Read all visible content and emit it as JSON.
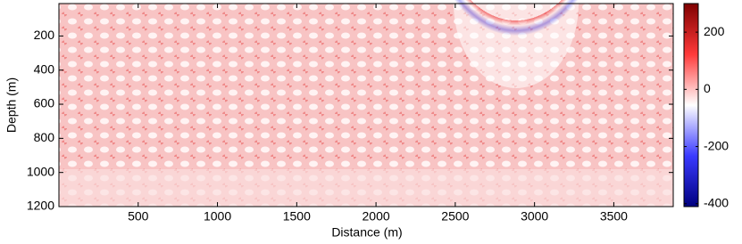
{
  "chart_data": {
    "type": "heatmap",
    "xlabel": "Distance (m)",
    "ylabel": "Depth (m)",
    "xlim": [
      0,
      3875
    ],
    "xticks": [
      500,
      1000,
      1500,
      2000,
      2500,
      3000,
      3500
    ],
    "ylim": [
      10,
      1200
    ],
    "yticks": [
      200,
      400,
      600,
      800,
      1000,
      1200
    ],
    "y_inverted": true,
    "colorbar": {
      "lim": [
        -410,
        300
      ],
      "ticks": [
        -400,
        -200,
        0,
        200
      ],
      "colors": [
        "#00007f",
        "#3a3aff",
        "#ffffff",
        "#ff3a3a",
        "#7f0000"
      ]
    }
  }
}
